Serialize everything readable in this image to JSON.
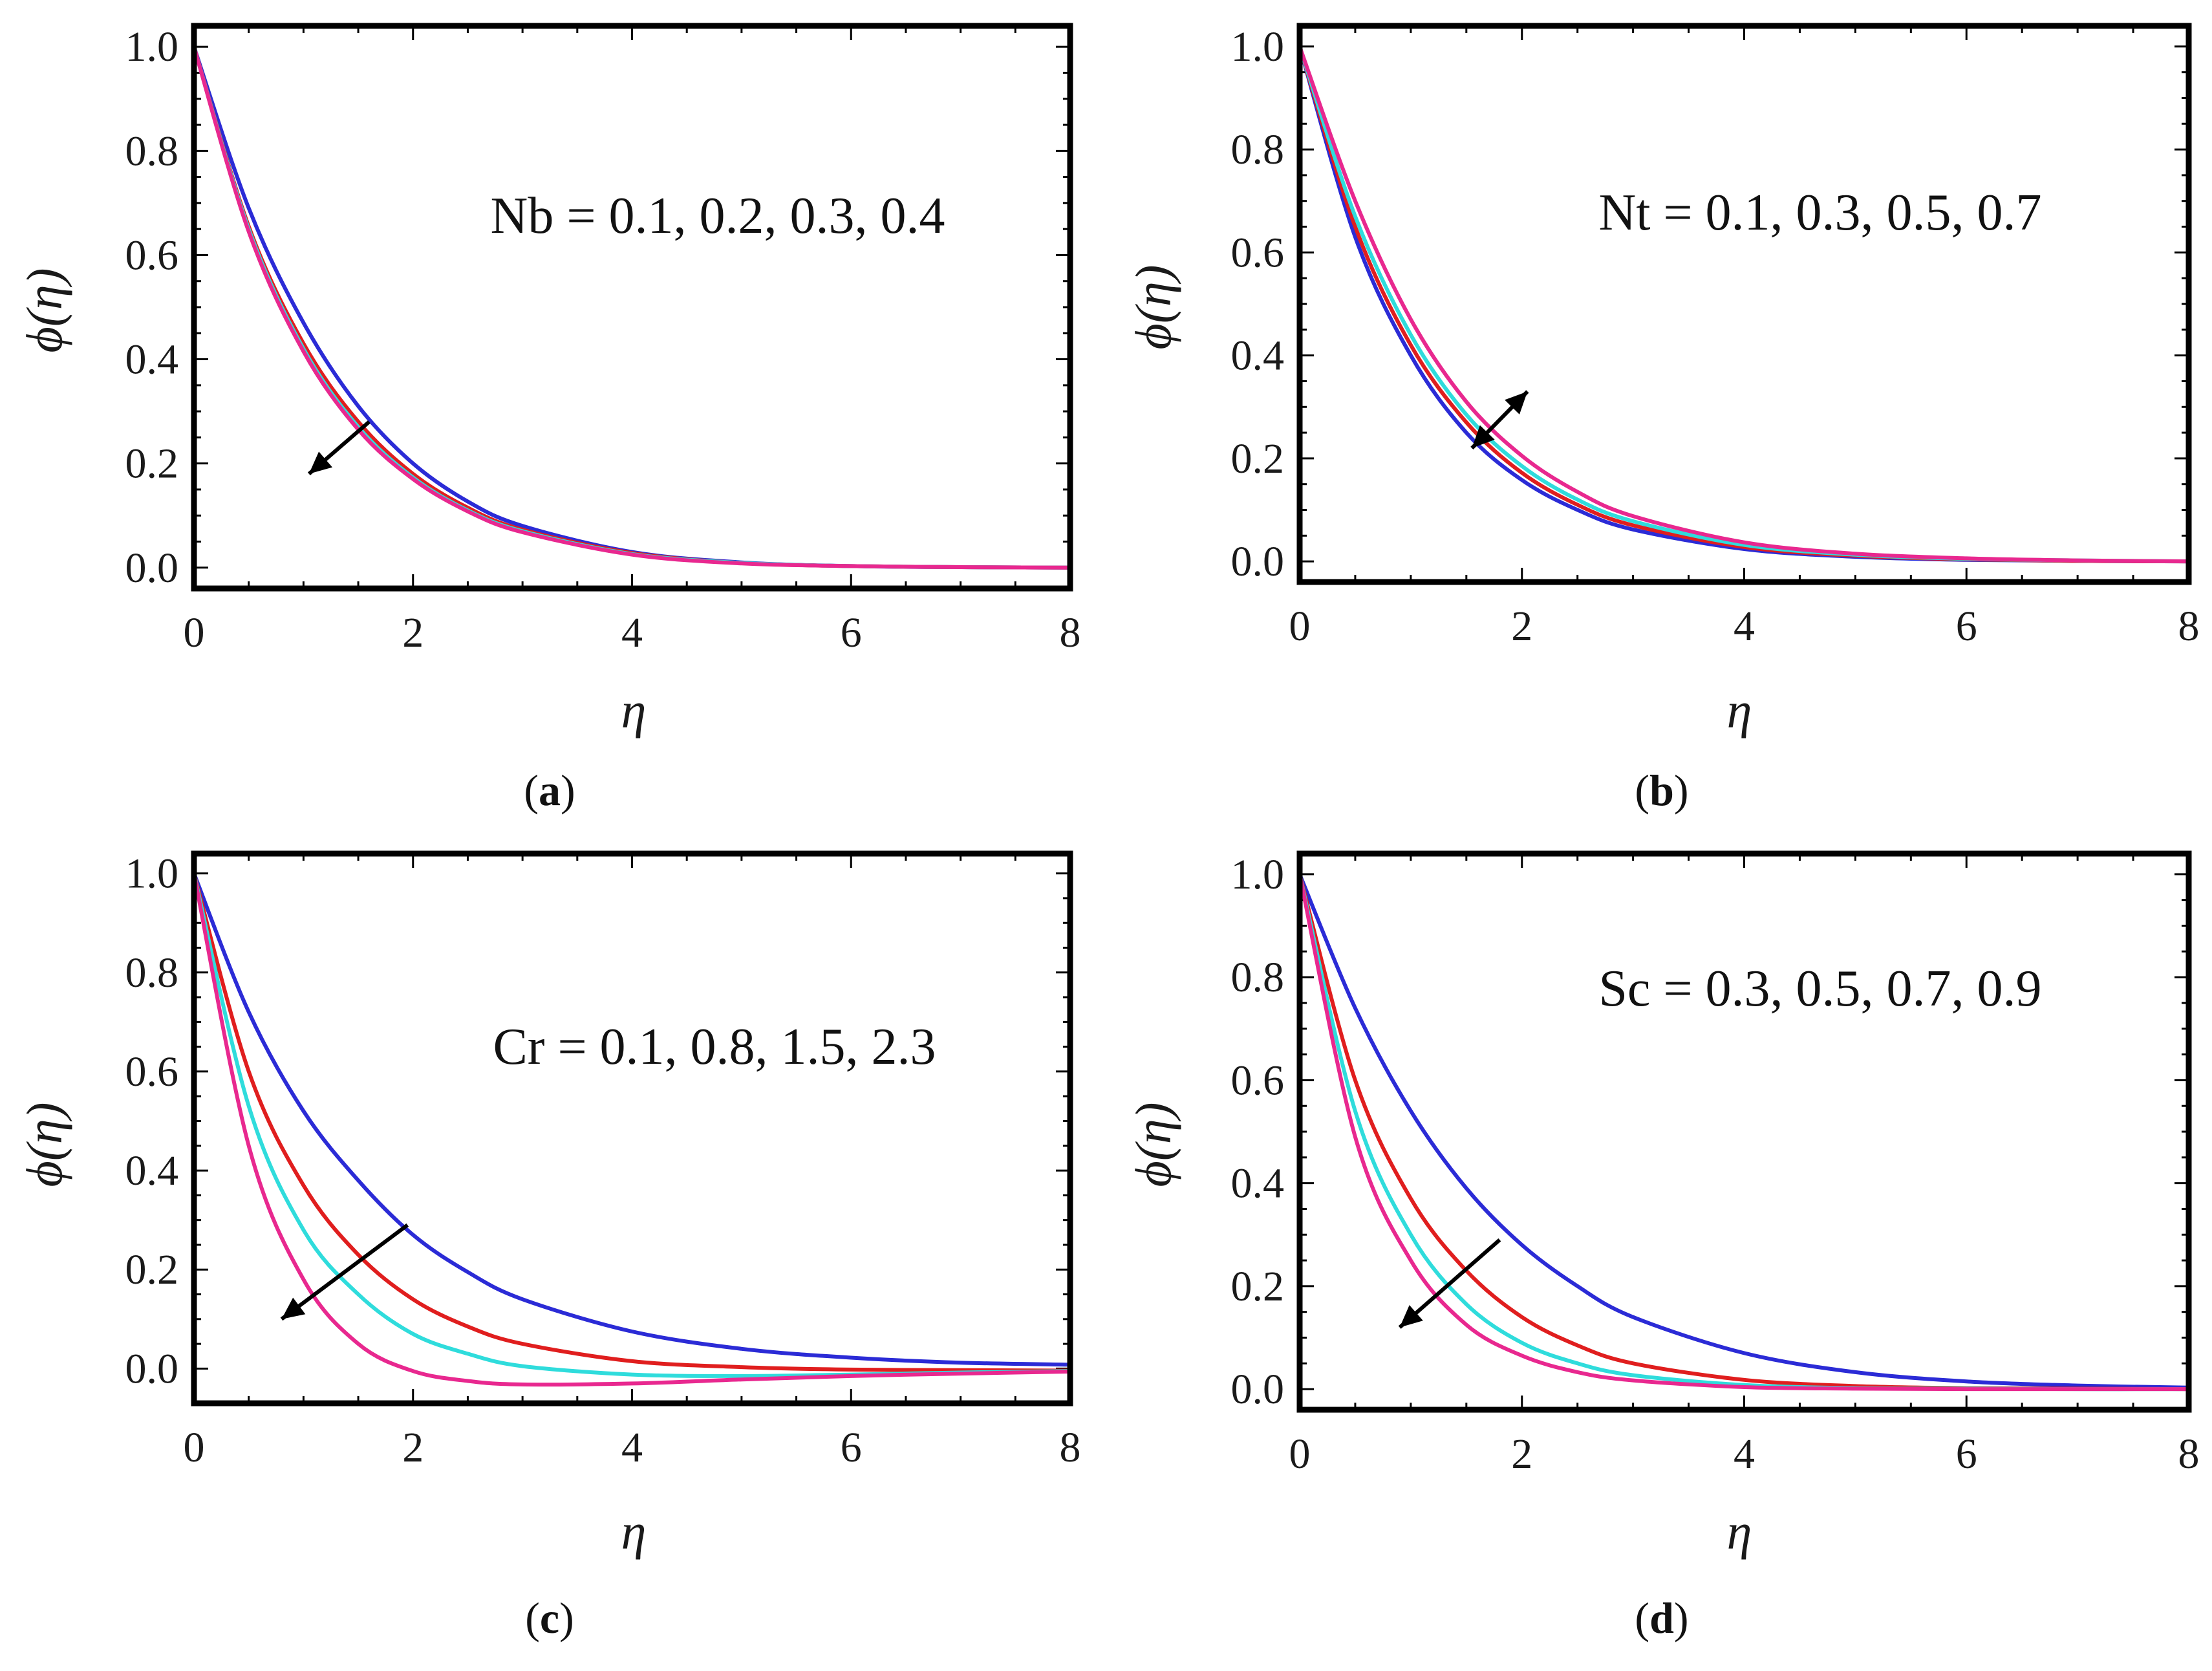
{
  "colors": {
    "blue": "#2b2bd6",
    "red": "#e01e1e",
    "cyan": "#2fdcdc",
    "magenta": "#e8288f"
  },
  "chart_data": [
    {
      "type": "line",
      "caption": "a",
      "annotation": "Nb = 0.1, 0.2, 0.3, 0.4",
      "xlabel": "η",
      "ylabel": "ϕ(η)",
      "xlim": [
        0,
        8
      ],
      "ylim": [
        -0.04,
        1.04
      ],
      "xticks": [
        "0",
        "2",
        "4",
        "6",
        "8"
      ],
      "yticks": [
        "0.0",
        "0.2",
        "0.4",
        "0.6",
        "0.8",
        "1.0"
      ],
      "arrow": {
        "from": [
          1.6,
          0.28
        ],
        "to": [
          1.05,
          0.18
        ],
        "head": "end"
      },
      "series": [
        {
          "name": "Nb = 0.1",
          "color": "blue",
          "x": [
            0,
            0.5,
            1,
            1.5,
            2,
            2.5,
            3,
            4,
            5,
            6,
            7,
            8
          ],
          "y": [
            1.0,
            0.69,
            0.47,
            0.31,
            0.2,
            0.127,
            0.08,
            0.03,
            0.01,
            0.003,
            0.001,
            0.0
          ]
        },
        {
          "name": "Nb = 0.2",
          "color": "red",
          "x": [
            0,
            0.5,
            1,
            1.5,
            2,
            2.5,
            3,
            4,
            5,
            6,
            7,
            8
          ],
          "y": [
            1.0,
            0.655,
            0.43,
            0.28,
            0.18,
            0.115,
            0.073,
            0.028,
            0.009,
            0.003,
            0.001,
            0.0
          ]
        },
        {
          "name": "Nb = 0.3",
          "color": "cyan",
          "x": [
            0,
            0.5,
            1,
            1.5,
            2,
            2.5,
            3,
            4,
            5,
            6,
            7,
            8
          ],
          "y": [
            1.0,
            0.65,
            0.42,
            0.27,
            0.173,
            0.11,
            0.07,
            0.026,
            0.009,
            0.003,
            0.001,
            0.0
          ]
        },
        {
          "name": "Nb = 0.4",
          "color": "magenta",
          "x": [
            0,
            0.5,
            1,
            1.5,
            2,
            2.5,
            3,
            4,
            5,
            6,
            7,
            8
          ],
          "y": [
            1.0,
            0.645,
            0.415,
            0.265,
            0.17,
            0.108,
            0.068,
            0.025,
            0.008,
            0.003,
            0.001,
            0.0
          ]
        }
      ]
    },
    {
      "type": "line",
      "caption": "b",
      "annotation": "Nt = 0.1, 0.3, 0.5, 0.7",
      "xlabel": "η",
      "ylabel": "ϕ(η)",
      "xlim": [
        0,
        8
      ],
      "ylim": [
        -0.04,
        1.04
      ],
      "xticks": [
        "0",
        "2",
        "4",
        "6",
        "8"
      ],
      "yticks": [
        "0.0",
        "0.2",
        "0.4",
        "0.6",
        "0.8",
        "1.0"
      ],
      "arrow": {
        "from": [
          1.55,
          0.22
        ],
        "to": [
          2.05,
          0.33
        ],
        "head": "both"
      },
      "series": [
        {
          "name": "Nt = 0.1",
          "color": "blue",
          "x": [
            0,
            0.5,
            1,
            1.5,
            2,
            2.5,
            3,
            4,
            5,
            6,
            7,
            8
          ],
          "y": [
            1.0,
            0.63,
            0.4,
            0.25,
            0.158,
            0.1,
            0.062,
            0.024,
            0.009,
            0.003,
            0.001,
            0.0
          ]
        },
        {
          "name": "Nt = 0.3",
          "color": "red",
          "x": [
            0,
            0.5,
            1,
            1.5,
            2,
            2.5,
            3,
            4,
            5,
            6,
            7,
            8
          ],
          "y": [
            1.0,
            0.65,
            0.42,
            0.27,
            0.172,
            0.11,
            0.07,
            0.028,
            0.011,
            0.004,
            0.001,
            0.0
          ]
        },
        {
          "name": "Nt = 0.5",
          "color": "cyan",
          "x": [
            0,
            0.5,
            1,
            1.5,
            2,
            2.5,
            3,
            4,
            5,
            6,
            7,
            8
          ],
          "y": [
            1.0,
            0.67,
            0.44,
            0.285,
            0.185,
            0.12,
            0.078,
            0.032,
            0.013,
            0.005,
            0.002,
            0.0
          ]
        },
        {
          "name": "Nt = 0.7",
          "color": "magenta",
          "x": [
            0,
            0.5,
            1,
            1.5,
            2,
            2.5,
            3,
            4,
            5,
            6,
            7,
            8
          ],
          "y": [
            1.0,
            0.7,
            0.47,
            0.31,
            0.205,
            0.135,
            0.088,
            0.037,
            0.015,
            0.006,
            0.002,
            0.0
          ]
        }
      ]
    },
    {
      "type": "line",
      "caption": "c",
      "annotation": "Cr = 0.1, 0.8, 1.5, 2.3",
      "xlabel": "η",
      "ylabel": "ϕ(η)",
      "xlim": [
        0,
        8
      ],
      "ylim": [
        -0.07,
        1.04
      ],
      "xticks": [
        "0",
        "2",
        "4",
        "6",
        "8"
      ],
      "yticks": [
        "0.0",
        "0.2",
        "0.4",
        "0.6",
        "0.8",
        "1.0"
      ],
      "arrow": {
        "from": [
          1.95,
          0.29
        ],
        "to": [
          0.8,
          0.1
        ],
        "head": "end"
      },
      "series": [
        {
          "name": "Cr = 0.1",
          "color": "blue",
          "x": [
            0,
            0.5,
            1,
            1.5,
            2,
            2.5,
            3,
            4,
            5,
            6,
            7,
            8
          ],
          "y": [
            1.0,
            0.72,
            0.52,
            0.38,
            0.27,
            0.195,
            0.14,
            0.075,
            0.04,
            0.022,
            0.012,
            0.008
          ]
        },
        {
          "name": "Cr = 0.8",
          "color": "red",
          "x": [
            0,
            0.5,
            1,
            1.5,
            2,
            2.5,
            3,
            4,
            5,
            6,
            7,
            8
          ],
          "y": [
            1.0,
            0.6,
            0.37,
            0.23,
            0.14,
            0.085,
            0.05,
            0.015,
            0.003,
            -0.002,
            -0.003,
            -0.004
          ]
        },
        {
          "name": "Cr = 1.5",
          "color": "cyan",
          "x": [
            0,
            0.5,
            1,
            1.5,
            2,
            2.5,
            3,
            4,
            5,
            6,
            7,
            8
          ],
          "y": [
            1.0,
            0.53,
            0.28,
            0.15,
            0.07,
            0.03,
            0.005,
            -0.012,
            -0.015,
            -0.012,
            -0.008,
            -0.005
          ]
        },
        {
          "name": "Cr = 2.3",
          "color": "magenta",
          "x": [
            0,
            0.5,
            1,
            1.5,
            2,
            2.5,
            3,
            4,
            5,
            6,
            7,
            8
          ],
          "y": [
            1.0,
            0.45,
            0.18,
            0.05,
            -0.005,
            -0.025,
            -0.032,
            -0.03,
            -0.022,
            -0.015,
            -0.01,
            -0.006
          ]
        }
      ]
    },
    {
      "type": "line",
      "caption": "d",
      "annotation": "Sc = 0.3, 0.5, 0.7, 0.9",
      "xlabel": "η",
      "ylabel": "ϕ(η)",
      "xlim": [
        0,
        8
      ],
      "ylim": [
        -0.04,
        1.04
      ],
      "xticks": [
        "0",
        "2",
        "4",
        "6",
        "8"
      ],
      "yticks": [
        "0.0",
        "0.2",
        "0.4",
        "0.6",
        "0.8",
        "1.0"
      ],
      "arrow": {
        "from": [
          1.8,
          0.29
        ],
        "to": [
          0.9,
          0.12
        ],
        "head": "end"
      },
      "series": [
        {
          "name": "Sc = 0.3",
          "color": "blue",
          "x": [
            0,
            0.5,
            1,
            1.5,
            2,
            2.5,
            3,
            4,
            5,
            6,
            7,
            8
          ],
          "y": [
            1.0,
            0.74,
            0.54,
            0.39,
            0.28,
            0.2,
            0.14,
            0.07,
            0.033,
            0.015,
            0.007,
            0.003
          ]
        },
        {
          "name": "Sc = 0.5",
          "color": "red",
          "x": [
            0,
            0.5,
            1,
            1.5,
            2,
            2.5,
            3,
            4,
            5,
            6,
            7,
            8
          ],
          "y": [
            1.0,
            0.6,
            0.37,
            0.23,
            0.14,
            0.085,
            0.05,
            0.018,
            0.006,
            0.002,
            0.001,
            0.0
          ]
        },
        {
          "name": "Sc = 0.7",
          "color": "cyan",
          "x": [
            0,
            0.5,
            1,
            1.5,
            2,
            2.5,
            3,
            4,
            5,
            6,
            7,
            8
          ],
          "y": [
            1.0,
            0.54,
            0.3,
            0.165,
            0.09,
            0.05,
            0.027,
            0.008,
            0.002,
            0.001,
            0.0,
            0.0
          ]
        },
        {
          "name": "Sc = 0.9",
          "color": "magenta",
          "x": [
            0,
            0.5,
            1,
            1.5,
            2,
            2.5,
            3,
            4,
            5,
            6,
            7,
            8
          ],
          "y": [
            1.0,
            0.49,
            0.25,
            0.125,
            0.065,
            0.033,
            0.017,
            0.004,
            0.001,
            0.0,
            0.0,
            0.0
          ]
        }
      ]
    }
  ]
}
